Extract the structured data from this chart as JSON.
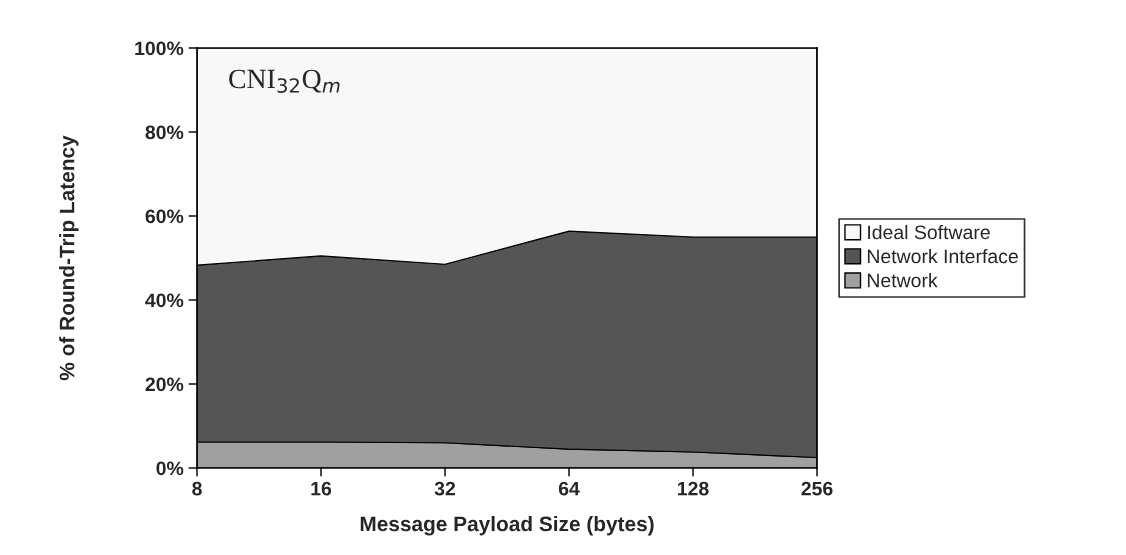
{
  "chart_data": {
    "type": "area",
    "stacked": true,
    "xlabel": "Message Payload Size (bytes)",
    "ylabel": "% of Round-Trip Latency",
    "categories": [
      "8",
      "16",
      "32",
      "64",
      "128",
      "256"
    ],
    "series": [
      {
        "name": "Network",
        "color": "#a0a0a0",
        "values": [
          6.2,
          6.2,
          6.0,
          4.5,
          3.8,
          2.5
        ]
      },
      {
        "name": "Network Interface",
        "color": "#555555",
        "values": [
          42.1,
          44.3,
          42.5,
          51.9,
          51.2,
          52.5
        ]
      },
      {
        "name": "Ideal Software",
        "color": "#f8f8f8",
        "values": [
          51.7,
          49.5,
          51.5,
          43.6,
          45.0,
          45.0
        ]
      }
    ],
    "ylim": [
      0,
      100
    ],
    "yticks": [
      {
        "value": 0,
        "label": "0%"
      },
      {
        "value": 20,
        "label": "20%"
      },
      {
        "value": 40,
        "label": "40%"
      },
      {
        "value": 60,
        "label": "60%"
      },
      {
        "value": 80,
        "label": "80%"
      },
      {
        "value": 100,
        "label": "100%"
      }
    ],
    "annotations": [
      "CNI$_{32}$Q$_{m}$"
    ],
    "legend": "right"
  }
}
